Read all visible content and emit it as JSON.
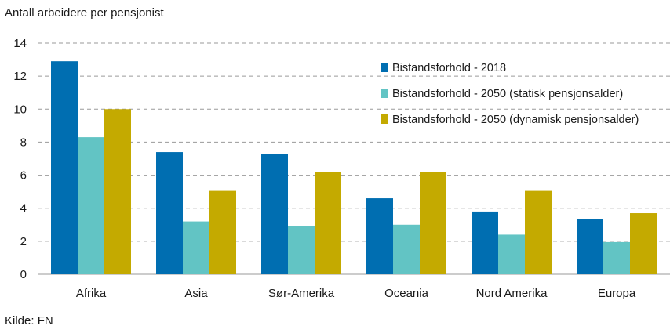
{
  "chart_data": {
    "type": "bar",
    "ylabel": "Antall arbeidere per pensjonist",
    "source": "Kilde: FN",
    "ylim": [
      0,
      14
    ],
    "yticks": [
      0,
      2,
      4,
      6,
      8,
      10,
      12,
      14
    ],
    "grid": true,
    "legend_position": "top-right",
    "categories": [
      "Afrika",
      "Asia",
      "Sør-Amerika",
      "Oceania",
      "Nord Amerika",
      "Europa"
    ],
    "series": [
      {
        "name": "Bistandsforhold - 2018",
        "color": "#006eb1",
        "values": [
          12.9,
          7.4,
          7.3,
          4.6,
          3.8,
          3.35
        ]
      },
      {
        "name": "Bistandsforhold - 2050 (statisk pensjonsalder)",
        "color": "#62c4c4",
        "values": [
          8.3,
          3.2,
          2.9,
          3.0,
          2.4,
          1.95
        ]
      },
      {
        "name": "Bistandsforhold - 2050 (dynamisk pensjonsalder)",
        "color": "#c4aa00",
        "values": [
          10.0,
          5.05,
          6.2,
          6.2,
          5.05,
          3.7
        ]
      }
    ]
  }
}
